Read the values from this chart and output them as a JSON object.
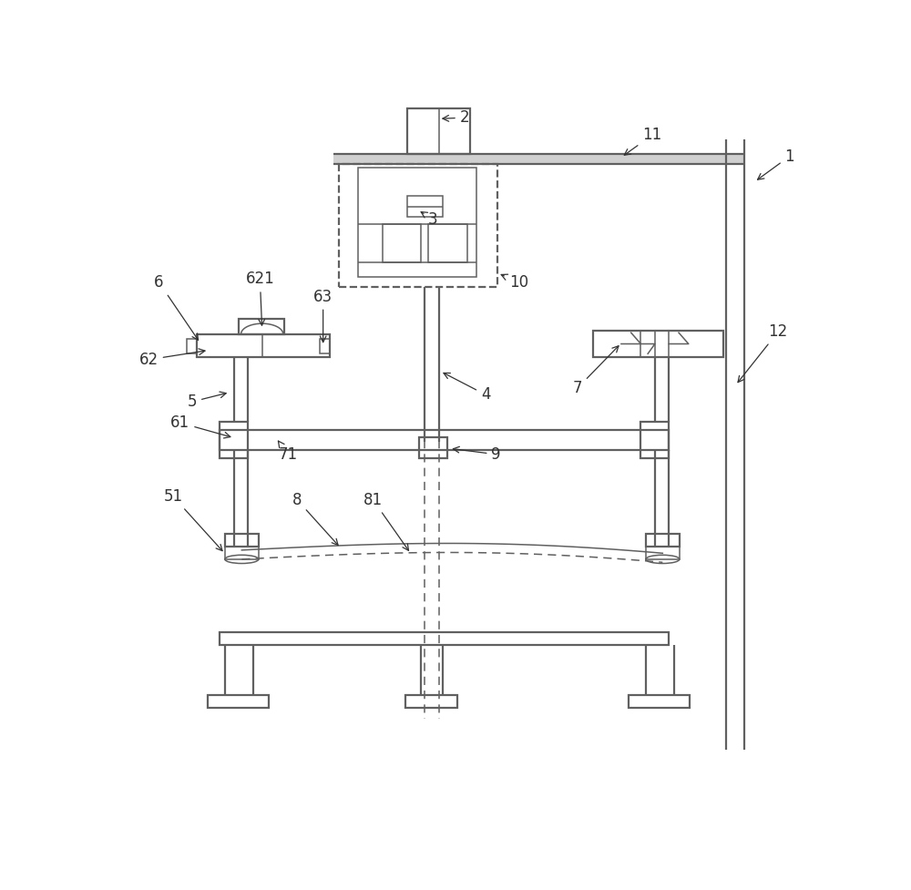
{
  "bg_color": "#ffffff",
  "lc": "#606060",
  "fig_width": 10.0,
  "fig_height": 9.77,
  "label_fs": 12,
  "label_color": "#333333"
}
